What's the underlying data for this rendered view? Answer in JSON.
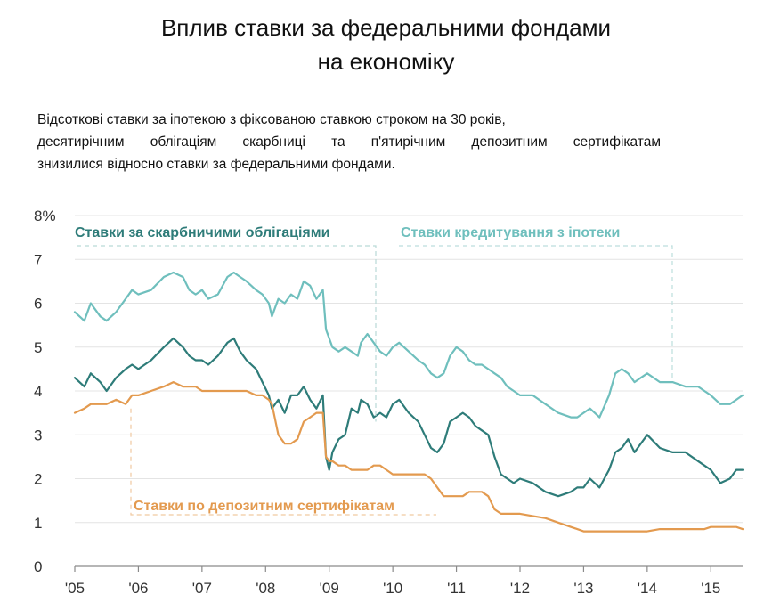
{
  "title_line1": "Вплив ставки за федеральними фондами",
  "title_line2": "на економіку",
  "subtitle_line1": "Відсоткові ставки за іпотекою з фіксованою ставкою строком на 30 років,",
  "subtitle_line2": "десятирічним облігаціям скарбниці та п'ятирічним депозитним сертифікатам",
  "subtitle_line3": "знизилися відносно ставки за федеральними фондами.",
  "chart_data": {
    "type": "line",
    "title": "Вплив ставки за федеральними фондами на економіку",
    "xlabel": "",
    "ylabel": "",
    "xlim": [
      2005.0,
      2015.5
    ],
    "ylim": [
      0,
      8
    ],
    "y_ticks": [
      "8%",
      "7",
      "6",
      "5",
      "4",
      "3",
      "2",
      "1",
      "0"
    ],
    "y_tick_values": [
      8,
      7,
      6,
      5,
      4,
      3,
      2,
      1,
      0
    ],
    "x_ticks": [
      "'05",
      "'06",
      "'07",
      "'08",
      "'09",
      "'10",
      "'11",
      "'12",
      "'13",
      "'14",
      "'15"
    ],
    "x_tick_values": [
      2005,
      2006,
      2007,
      2008,
      2009,
      2010,
      2011,
      2012,
      2013,
      2014,
      2015
    ],
    "grid": true,
    "series": [
      {
        "name": "Ставки кредитування з іпотеки",
        "color": "#6fbfbd",
        "x": [
          2005.0,
          2005.15,
          2005.25,
          2005.4,
          2005.5,
          2005.65,
          2005.8,
          2005.9,
          2006.0,
          2006.2,
          2006.4,
          2006.55,
          2006.7,
          2006.8,
          2006.9,
          2007.0,
          2007.1,
          2007.25,
          2007.4,
          2007.5,
          2007.6,
          2007.7,
          2007.85,
          2007.95,
          2008.05,
          2008.1,
          2008.2,
          2008.3,
          2008.4,
          2008.5,
          2008.6,
          2008.7,
          2008.8,
          2008.9,
          2008.95,
          2009.0,
          2009.05,
          2009.15,
          2009.25,
          2009.35,
          2009.45,
          2009.5,
          2009.6,
          2009.7,
          2009.8,
          2009.9,
          2010.0,
          2010.1,
          2010.25,
          2010.4,
          2010.5,
          2010.6,
          2010.7,
          2010.8,
          2010.9,
          2011.0,
          2011.1,
          2011.2,
          2011.3,
          2011.4,
          2011.5,
          2011.6,
          2011.7,
          2011.8,
          2011.9,
          2012.0,
          2012.2,
          2012.4,
          2012.6,
          2012.8,
          2012.9,
          2013.0,
          2013.1,
          2013.25,
          2013.4,
          2013.5,
          2013.6,
          2013.7,
          2013.8,
          2013.9,
          2014.0,
          2014.2,
          2014.4,
          2014.6,
          2014.8,
          2014.9,
          2015.0,
          2015.15,
          2015.3,
          2015.4,
          2015.5
        ],
        "values": [
          5.8,
          5.6,
          6.0,
          5.7,
          5.6,
          5.8,
          6.1,
          6.3,
          6.2,
          6.3,
          6.6,
          6.7,
          6.6,
          6.3,
          6.2,
          6.3,
          6.1,
          6.2,
          6.6,
          6.7,
          6.6,
          6.5,
          6.3,
          6.2,
          6.0,
          5.7,
          6.1,
          6.0,
          6.2,
          6.1,
          6.5,
          6.4,
          6.1,
          6.3,
          5.4,
          5.2,
          5.0,
          4.9,
          5.0,
          4.9,
          4.8,
          5.1,
          5.3,
          5.1,
          4.9,
          4.8,
          5.0,
          5.1,
          4.9,
          4.7,
          4.6,
          4.4,
          4.3,
          4.4,
          4.8,
          5.0,
          4.9,
          4.7,
          4.6,
          4.6,
          4.5,
          4.4,
          4.3,
          4.1,
          4.0,
          3.9,
          3.9,
          3.7,
          3.5,
          3.4,
          3.4,
          3.5,
          3.6,
          3.4,
          3.9,
          4.4,
          4.5,
          4.4,
          4.2,
          4.3,
          4.4,
          4.2,
          4.2,
          4.1,
          4.1,
          4.0,
          3.9,
          3.7,
          3.7,
          3.8,
          3.9
        ]
      },
      {
        "name": "Ставки за скарбничими облігаціями",
        "color": "#2e7c79",
        "x": [
          2005.0,
          2005.15,
          2005.25,
          2005.4,
          2005.5,
          2005.65,
          2005.8,
          2005.9,
          2006.0,
          2006.2,
          2006.4,
          2006.55,
          2006.7,
          2006.8,
          2006.9,
          2007.0,
          2007.1,
          2007.25,
          2007.4,
          2007.5,
          2007.6,
          2007.7,
          2007.85,
          2007.95,
          2008.05,
          2008.1,
          2008.2,
          2008.3,
          2008.4,
          2008.5,
          2008.6,
          2008.7,
          2008.8,
          2008.9,
          2008.95,
          2009.0,
          2009.05,
          2009.15,
          2009.25,
          2009.35,
          2009.45,
          2009.5,
          2009.6,
          2009.7,
          2009.8,
          2009.9,
          2010.0,
          2010.1,
          2010.25,
          2010.4,
          2010.5,
          2010.6,
          2010.7,
          2010.8,
          2010.9,
          2011.0,
          2011.1,
          2011.2,
          2011.3,
          2011.4,
          2011.5,
          2011.6,
          2011.7,
          2011.8,
          2011.9,
          2012.0,
          2012.2,
          2012.4,
          2012.6,
          2012.8,
          2012.9,
          2013.0,
          2013.1,
          2013.25,
          2013.4,
          2013.5,
          2013.6,
          2013.7,
          2013.8,
          2013.9,
          2014.0,
          2014.2,
          2014.4,
          2014.6,
          2014.8,
          2014.9,
          2015.0,
          2015.15,
          2015.3,
          2015.4,
          2015.5
        ],
        "values": [
          4.3,
          4.1,
          4.4,
          4.2,
          4.0,
          4.3,
          4.5,
          4.6,
          4.5,
          4.7,
          5.0,
          5.2,
          5.0,
          4.8,
          4.7,
          4.7,
          4.6,
          4.8,
          5.1,
          5.2,
          4.9,
          4.7,
          4.5,
          4.2,
          3.9,
          3.6,
          3.8,
          3.5,
          3.9,
          3.9,
          4.1,
          3.8,
          3.6,
          3.9,
          2.5,
          2.2,
          2.6,
          2.9,
          3.0,
          3.6,
          3.5,
          3.8,
          3.7,
          3.4,
          3.5,
          3.4,
          3.7,
          3.8,
          3.5,
          3.3,
          3.0,
          2.7,
          2.6,
          2.8,
          3.3,
          3.4,
          3.5,
          3.4,
          3.2,
          3.1,
          3.0,
          2.5,
          2.1,
          2.0,
          1.9,
          2.0,
          1.9,
          1.7,
          1.6,
          1.7,
          1.8,
          1.8,
          2.0,
          1.8,
          2.2,
          2.6,
          2.7,
          2.9,
          2.6,
          2.8,
          3.0,
          2.7,
          2.6,
          2.6,
          2.4,
          2.3,
          2.2,
          1.9,
          2.0,
          2.2,
          2.2
        ]
      },
      {
        "name": "Ставки по депозитним сертифікатам",
        "color": "#e39a4f",
        "x": [
          2005.0,
          2005.15,
          2005.25,
          2005.4,
          2005.5,
          2005.65,
          2005.8,
          2005.9,
          2006.0,
          2006.2,
          2006.4,
          2006.55,
          2006.7,
          2006.8,
          2006.9,
          2007.0,
          2007.1,
          2007.25,
          2007.4,
          2007.5,
          2007.6,
          2007.7,
          2007.85,
          2007.95,
          2008.05,
          2008.1,
          2008.2,
          2008.3,
          2008.4,
          2008.5,
          2008.6,
          2008.7,
          2008.8,
          2008.9,
          2008.95,
          2009.0,
          2009.05,
          2009.15,
          2009.25,
          2009.35,
          2009.45,
          2009.5,
          2009.6,
          2009.7,
          2009.8,
          2009.9,
          2010.0,
          2010.1,
          2010.25,
          2010.4,
          2010.5,
          2010.6,
          2010.7,
          2010.8,
          2010.9,
          2011.0,
          2011.1,
          2011.2,
          2011.3,
          2011.4,
          2011.5,
          2011.6,
          2011.7,
          2011.8,
          2011.9,
          2012.0,
          2012.2,
          2012.4,
          2012.6,
          2012.8,
          2012.9,
          2013.0,
          2013.1,
          2013.25,
          2013.4,
          2013.5,
          2013.6,
          2013.7,
          2013.8,
          2013.9,
          2014.0,
          2014.2,
          2014.4,
          2014.6,
          2014.8,
          2014.9,
          2015.0,
          2015.15,
          2015.3,
          2015.4,
          2015.5
        ],
        "values": [
          3.5,
          3.6,
          3.7,
          3.7,
          3.7,
          3.8,
          3.7,
          3.9,
          3.9,
          4.0,
          4.1,
          4.2,
          4.1,
          4.1,
          4.1,
          4.0,
          4.0,
          4.0,
          4.0,
          4.0,
          4.0,
          4.0,
          3.9,
          3.9,
          3.8,
          3.7,
          3.0,
          2.8,
          2.8,
          2.9,
          3.3,
          3.4,
          3.5,
          3.5,
          2.5,
          2.4,
          2.4,
          2.3,
          2.3,
          2.2,
          2.2,
          2.2,
          2.2,
          2.3,
          2.3,
          2.2,
          2.1,
          2.1,
          2.1,
          2.1,
          2.1,
          2.0,
          1.8,
          1.6,
          1.6,
          1.6,
          1.6,
          1.7,
          1.7,
          1.7,
          1.6,
          1.3,
          1.2,
          1.2,
          1.2,
          1.2,
          1.15,
          1.1,
          1.0,
          0.9,
          0.85,
          0.8,
          0.8,
          0.8,
          0.8,
          0.8,
          0.8,
          0.8,
          0.8,
          0.8,
          0.8,
          0.85,
          0.85,
          0.85,
          0.85,
          0.85,
          0.9,
          0.9,
          0.9,
          0.9,
          0.85
        ]
      }
    ]
  }
}
